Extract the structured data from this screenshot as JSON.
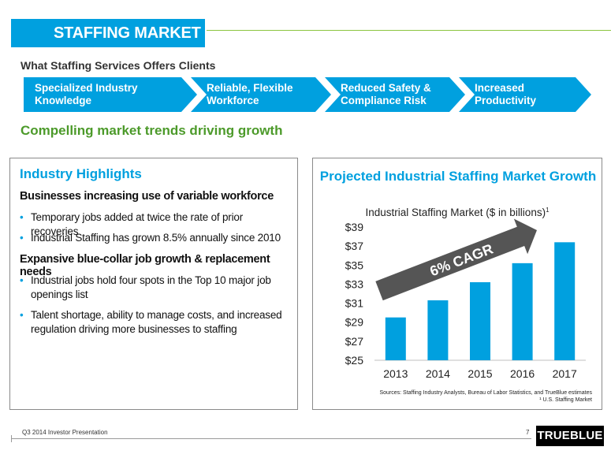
{
  "header": {
    "title": "STAFFING MARKET"
  },
  "offers": {
    "title": "What Staffing Services Offers Clients",
    "chevrons": [
      {
        "line1": "Specialized Industry",
        "line2": "Knowledge"
      },
      {
        "line1": "Reliable, Flexible",
        "line2": "Workforce"
      },
      {
        "line1": "Reduced Safety &",
        "line2": "Compliance Risk"
      },
      {
        "line1": "Increased",
        "line2": "Productivity"
      }
    ]
  },
  "trends": {
    "title": "Compelling market trends driving growth"
  },
  "highlights": {
    "title": "Industry Highlights",
    "section1": "Businesses increasing use of variable workforce",
    "bullet1": "Temporary jobs added at twice the rate of prior recoveries",
    "bullet2": "Industrial Staffing has grown 8.5% annually since 2010",
    "section2": "Expansive blue-collar job growth & replacement needs",
    "bullet3": "Industrial jobs hold four spots in the Top 10 major job openings list",
    "bullet4": "Talent shortage, ability to manage costs, and increased regulation driving more businesses to staffing"
  },
  "chart_panel": {
    "title": "Projected Industrial Staffing Market Growth",
    "sources": "Sources: Staffing Industry Analysts, Bureau of Labor Statistics, and TrueBlue estimates",
    "footnote": "¹ U.S. Staffing Market"
  },
  "chart_data": {
    "type": "bar",
    "title": "Industrial Staffing Market ($ in billions)",
    "title_superscript": "1",
    "categories": [
      "2013",
      "2014",
      "2015",
      "2016",
      "2017"
    ],
    "values": [
      29.5,
      31.3,
      33.2,
      35.2,
      37.4
    ],
    "ylim": [
      25,
      39
    ],
    "yticks": [
      "$25",
      "$27",
      "$29",
      "$31",
      "$33",
      "$35",
      "$37",
      "$39"
    ],
    "ytick_values": [
      25,
      27,
      29,
      31,
      33,
      35,
      37,
      39
    ],
    "annotation": "6% CAGR",
    "bar_color": "#00a0df"
  },
  "footer": {
    "text": "Q3 2014 Investor Presentation",
    "page": "7",
    "logo": "TRUEBLUE"
  },
  "colors": {
    "accent": "#00a0df",
    "green": "#4c9a2a",
    "rule": "#8bc53f"
  }
}
